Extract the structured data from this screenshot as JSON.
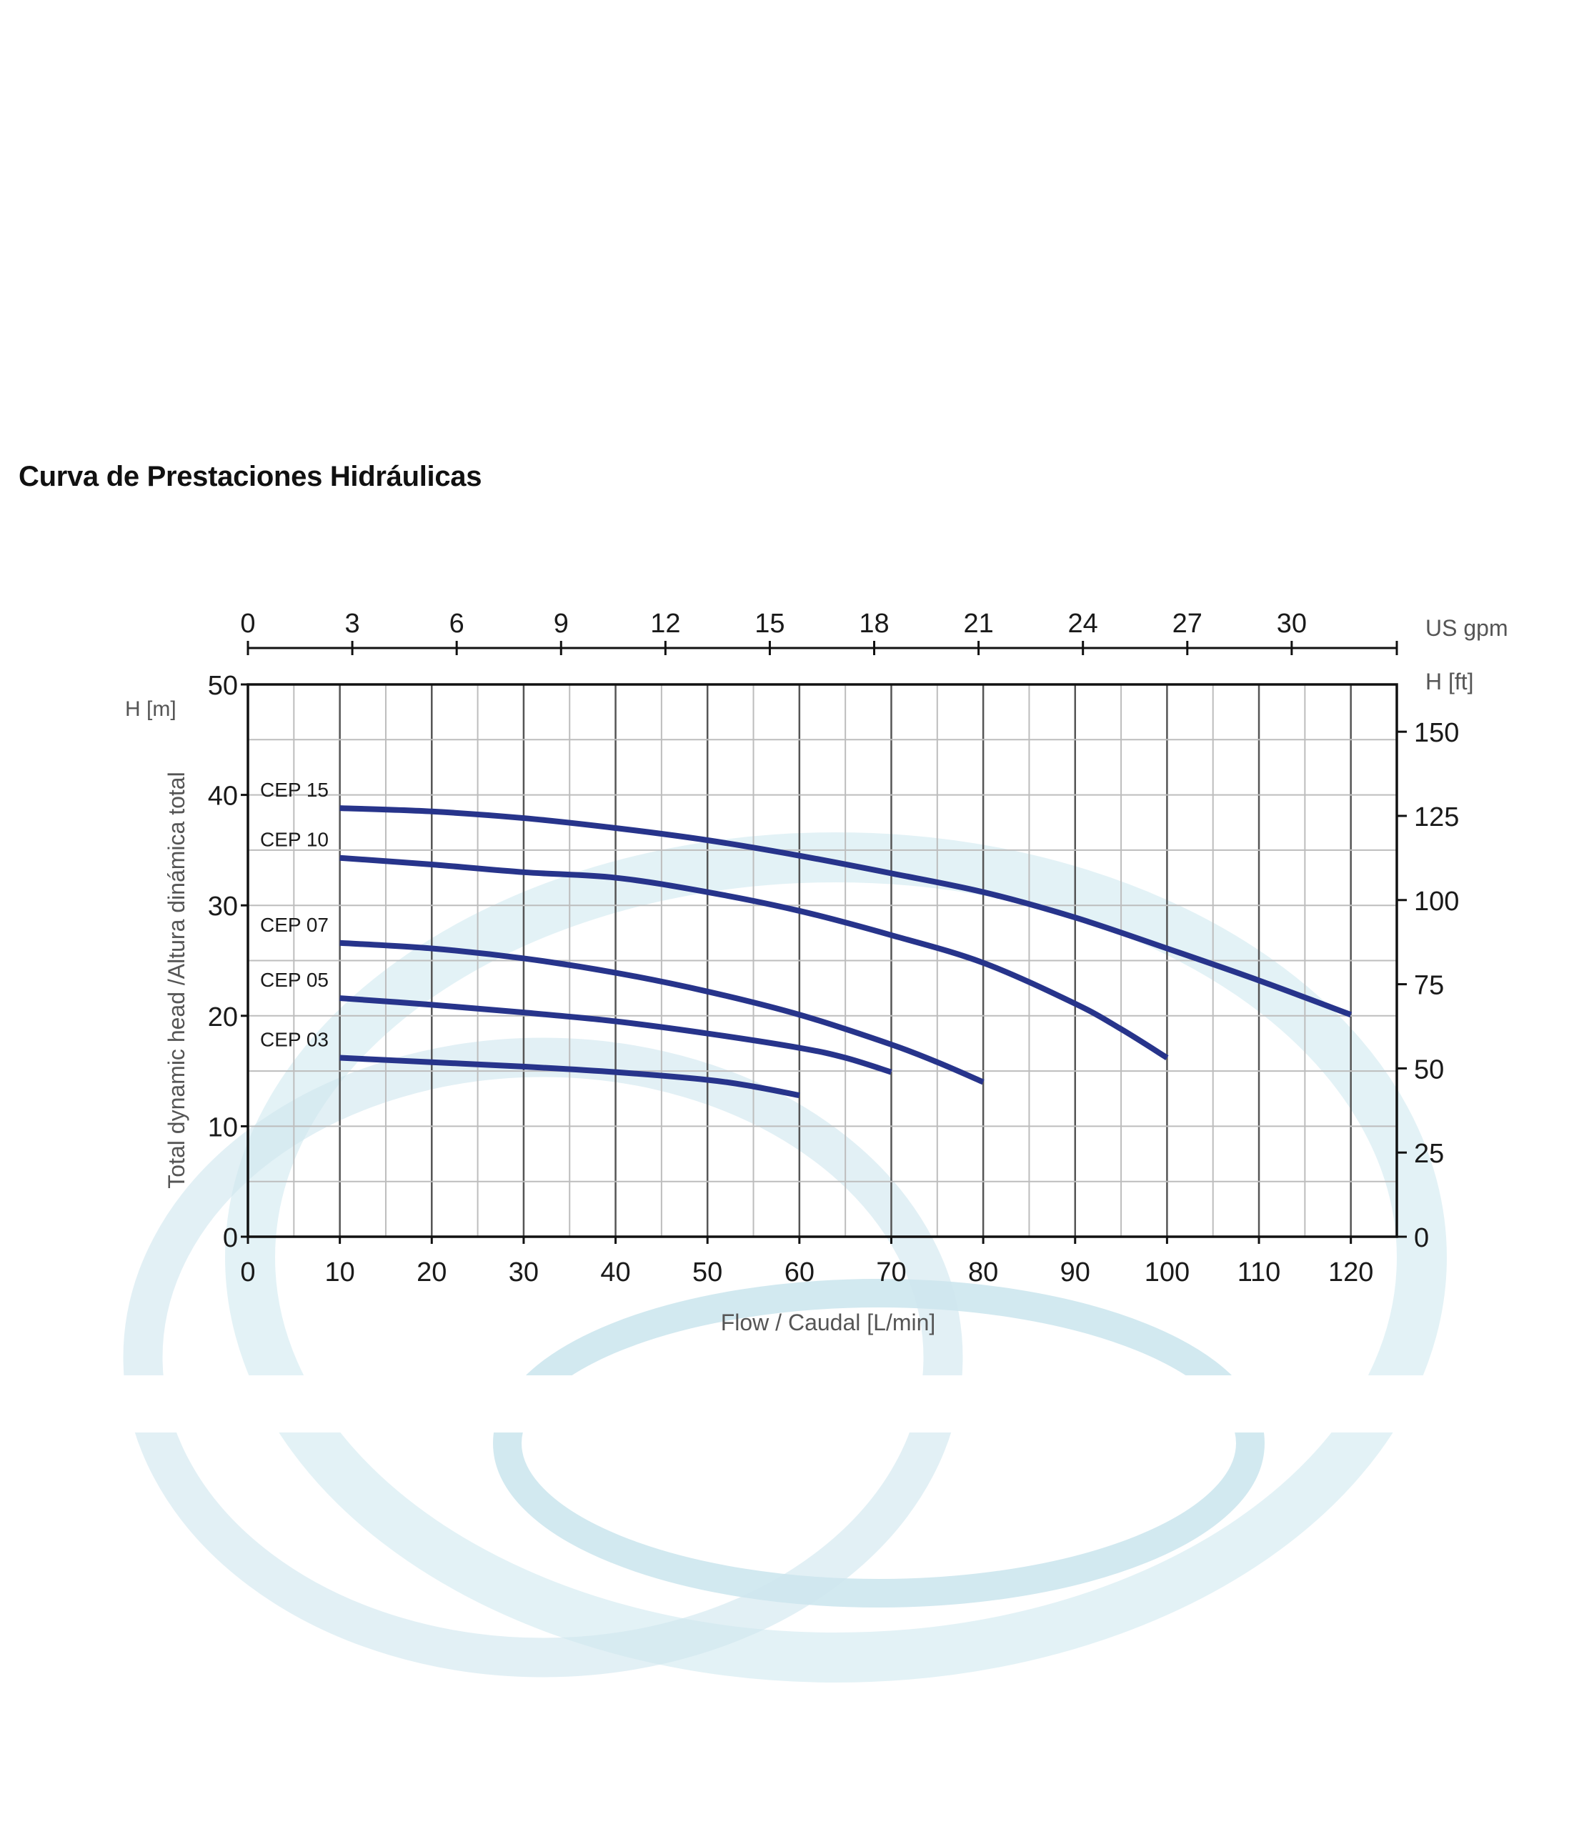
{
  "title": "Curva de Prestaciones Hidráulicas",
  "colors": {
    "series": "#27348b",
    "frame": "#111111",
    "grid_major": "#555555",
    "grid_minor": "#bdbdbd"
  },
  "chart_data": {
    "type": "line",
    "title": "Curva de Prestaciones Hidráulicas",
    "xlabel": "Flow / Caudal [L/min]",
    "ylabel": "Total dynamic head /Altura dinámica total",
    "y_unit_label": "H [m]",
    "y2_unit_label": "H  [ft]",
    "x2_unit_label": "US gpm",
    "xlim": [
      0,
      125
    ],
    "ylim": [
      0,
      50
    ],
    "grid": true,
    "x_ticks": [
      0,
      10,
      20,
      30,
      40,
      50,
      60,
      70,
      80,
      90,
      100,
      110,
      120
    ],
    "y_ticks": [
      0,
      10,
      20,
      30,
      40,
      50
    ],
    "y2_ticks": [
      0,
      25,
      50,
      75,
      100,
      125,
      150
    ],
    "x2_ticks": [
      0,
      3,
      6,
      9,
      12,
      15,
      18,
      21,
      24,
      27,
      30
    ],
    "series": [
      {
        "name": "CEP 15",
        "points": [
          [
            10,
            38.8
          ],
          [
            20,
            38.5
          ],
          [
            30,
            37.9
          ],
          [
            40,
            37.0
          ],
          [
            50,
            35.9
          ],
          [
            60,
            34.5
          ],
          [
            70,
            32.9
          ],
          [
            80,
            31.2
          ],
          [
            90,
            28.9
          ],
          [
            100,
            26.1
          ],
          [
            110,
            23.2
          ],
          [
            120,
            20.1
          ]
        ]
      },
      {
        "name": "CEP 10",
        "points": [
          [
            10,
            34.3
          ],
          [
            20,
            33.7
          ],
          [
            30,
            33.0
          ],
          [
            40,
            32.5
          ],
          [
            50,
            31.2
          ],
          [
            60,
            29.5
          ],
          [
            70,
            27.3
          ],
          [
            80,
            24.8
          ],
          [
            90,
            21.1
          ],
          [
            95,
            18.8
          ],
          [
            100,
            16.2
          ]
        ]
      },
      {
        "name": "CEP 07",
        "points": [
          [
            10,
            26.6
          ],
          [
            20,
            26.1
          ],
          [
            30,
            25.2
          ],
          [
            40,
            23.9
          ],
          [
            50,
            22.2
          ],
          [
            60,
            20.1
          ],
          [
            70,
            17.4
          ],
          [
            75,
            15.8
          ],
          [
            80,
            14.0
          ]
        ]
      },
      {
        "name": "CEP 05",
        "points": [
          [
            10,
            21.6
          ],
          [
            20,
            21.0
          ],
          [
            30,
            20.3
          ],
          [
            40,
            19.5
          ],
          [
            50,
            18.4
          ],
          [
            60,
            17.1
          ],
          [
            65,
            16.2
          ],
          [
            70,
            14.9
          ]
        ]
      },
      {
        "name": "CEP 03",
        "points": [
          [
            10,
            16.2
          ],
          [
            20,
            15.8
          ],
          [
            30,
            15.4
          ],
          [
            40,
            14.9
          ],
          [
            50,
            14.2
          ],
          [
            55,
            13.6
          ],
          [
            60,
            12.8
          ]
        ]
      }
    ]
  }
}
